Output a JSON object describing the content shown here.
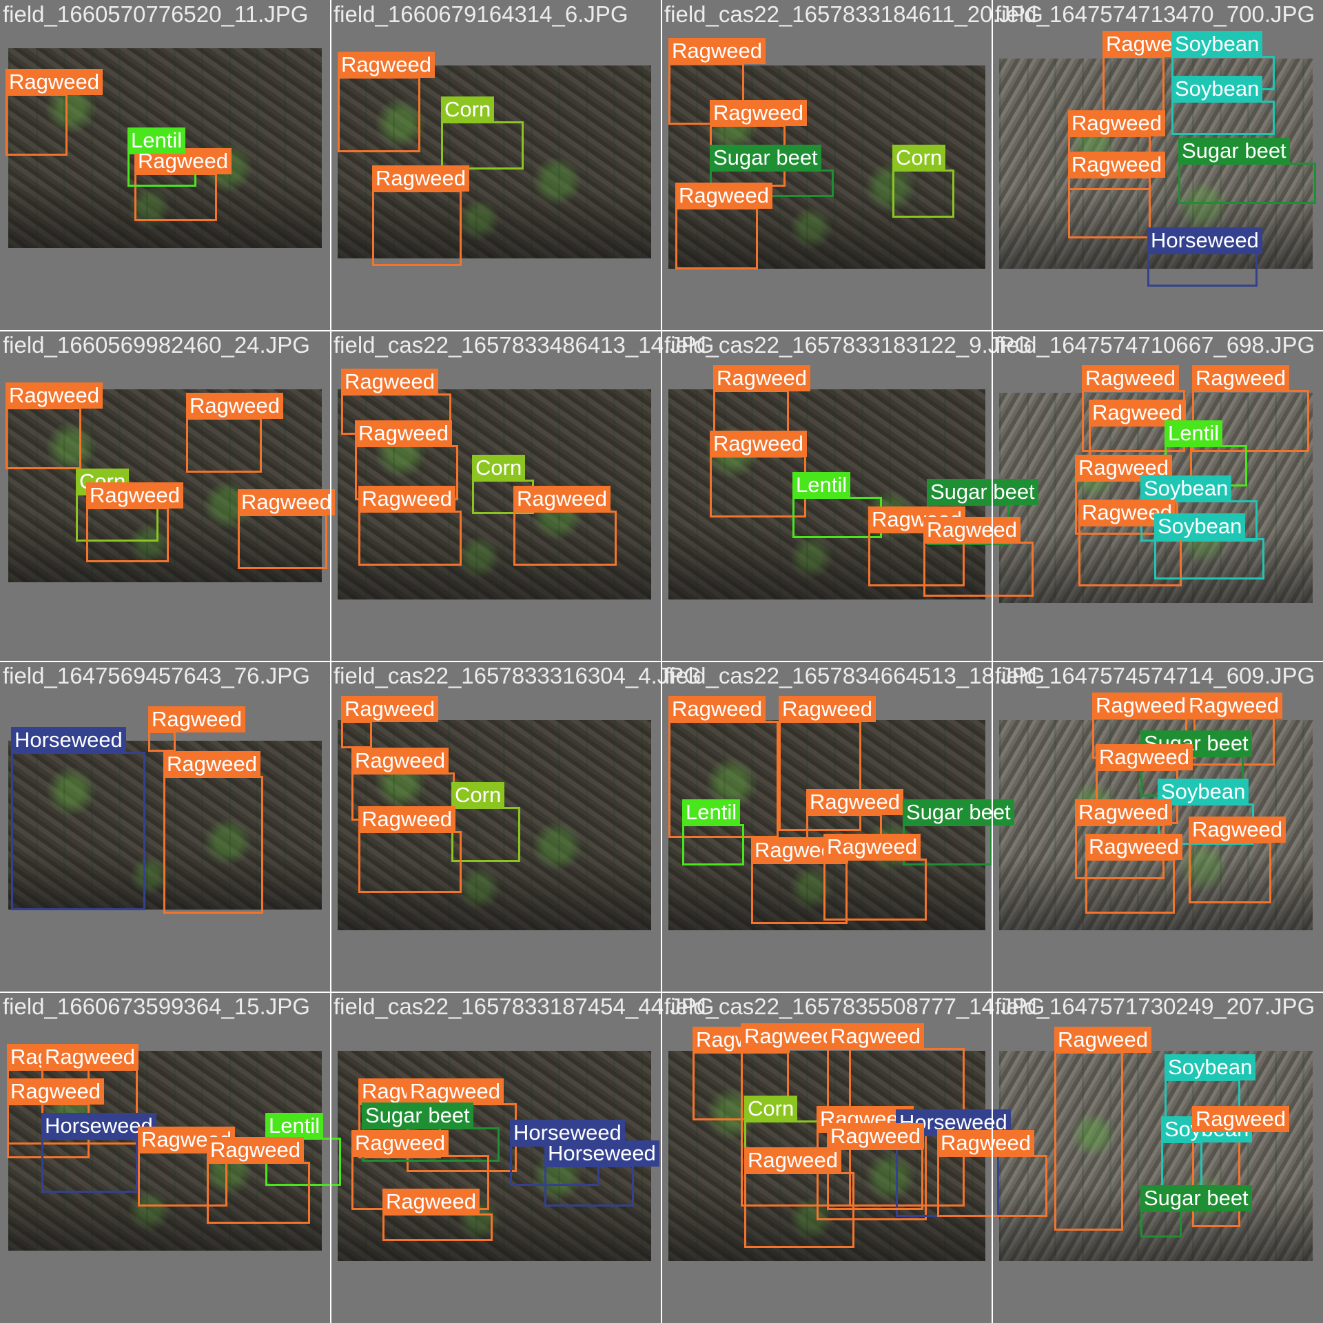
{
  "colors": {
    "ragweed": "#f5742c",
    "corn": "#8cc51f",
    "lentil": "#49e61c",
    "sugar_beet": "#1e8f33",
    "soybean": "#1fc6b4",
    "horseweed": "#33418f"
  },
  "tiles": [
    {
      "title": "field_1660570776520_11.JPG",
      "labels": [
        "Ragweed",
        "Ragweed",
        "Lentil"
      ]
    },
    {
      "title": "field_1660679164314_6.JPG",
      "labels": [
        "Ragweed",
        "Corn",
        "Ragweed"
      ]
    },
    {
      "title": "field_cas22_1657833184611_20.JPG",
      "labels": [
        "Ragweed",
        "Ragweed",
        "Sugar beet",
        "Corn",
        "Ragweed"
      ]
    },
    {
      "title": "field_1647574713470_700.JPG",
      "labels": [
        "Ragweed",
        "Soybean",
        "Soybean",
        "Ragweed",
        "Sugar beet",
        "Ragweed",
        "Horseweed"
      ]
    },
    {
      "title": "field_1660569982460_24.JPG",
      "labels": [
        "Ragweed",
        "Ragweed",
        "Corn",
        "Ragweed",
        "Ragweed"
      ]
    },
    {
      "title": "field_cas22_1657833486413_14.JPG",
      "labels": [
        "Ragweed",
        "Ragweed",
        "Corn",
        "Ragweed",
        "Ragweed"
      ]
    },
    {
      "title": "field_cas22_1657833183122_9.JPG",
      "labels": [
        "Ragweed",
        "Ragweed",
        "Lentil",
        "Sugar beet",
        "Ragweed",
        "Ragweed"
      ]
    },
    {
      "title": "field_1647574710667_698.JPG",
      "labels": [
        "Ragweed",
        "Ragweed",
        "Ragweed",
        "Lentil",
        "Ragweed",
        "Soybean",
        "Ragweed",
        "Soybean"
      ]
    },
    {
      "title": "field_1647569457643_76.JPG",
      "labels": [
        "Horseweed",
        "Ragweed",
        "Ragweed"
      ]
    },
    {
      "title": "field_cas22_1657833316304_4.JPG",
      "labels": [
        "Ragweed",
        "Ragweed",
        "Corn",
        "Ragweed"
      ]
    },
    {
      "title": "field_cas22_1657834664513_18.JPG",
      "labels": [
        "Ragweed",
        "Ragweed",
        "Ragweed",
        "Lentil",
        "Sugar beet",
        "Ragweed",
        "Ragweed"
      ]
    },
    {
      "title": "field_1647574574714_609.JPG",
      "labels": [
        "Ragweed",
        "Ragweed",
        "Sugar beet",
        "Ragweed",
        "Soybean",
        "Ragweed",
        "Ragweed",
        "Ragweed"
      ]
    },
    {
      "title": "field_1660673599364_15.JPG",
      "labels": [
        "Ragweed",
        "Ragweed",
        "Ragweed",
        "Horseweed",
        "Lentil",
        "Ragweed",
        "Ragweed"
      ]
    },
    {
      "title": "field_cas22_1657833187454_44.JPG",
      "labels": [
        "Ragweed",
        "Ragweed",
        "Sugar beet",
        "Horseweed",
        "Horseweed",
        "Ragweed",
        "Ragweed"
      ]
    },
    {
      "title": "field_cas22_1657835508777_14.JPG",
      "labels": [
        "Ragweed",
        "Ragweed",
        "Ragweed",
        "Corn",
        "Ragweed",
        "Horseweed",
        "Ragweed",
        "Ragweed",
        "Ragweed"
      ]
    },
    {
      "title": "field_1647571730249_207.JPG",
      "labels": [
        "Ragweed",
        "Soybean",
        "Soybean",
        "Ragweed",
        "Sugar beet"
      ]
    }
  ]
}
